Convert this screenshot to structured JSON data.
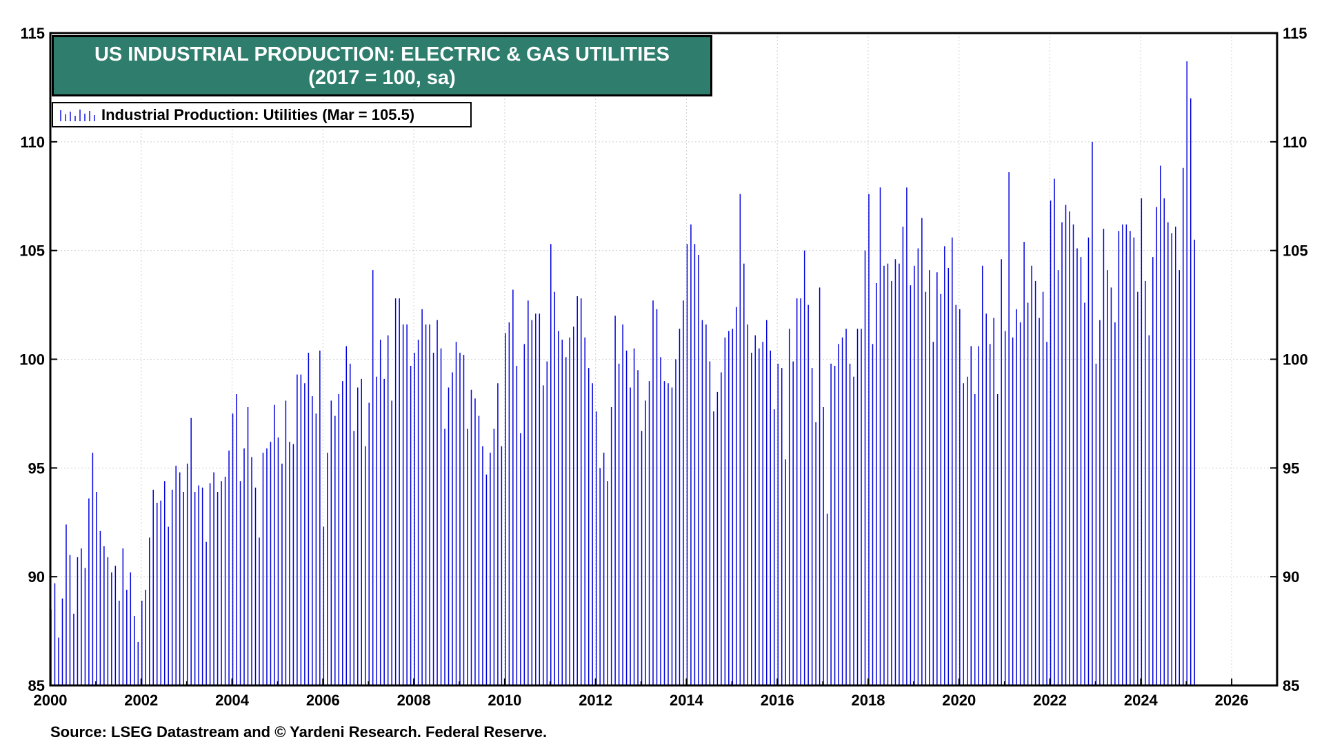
{
  "chart_data": {
    "type": "bar",
    "title": "US INDUSTRIAL PRODUCTION: ELECTRIC & GAS UTILITIES",
    "subtitle": "(2017 = 100, sa)",
    "legend": [
      {
        "label": "Industrial Production: Utilities (Mar = 105.5)",
        "color": "#0000dd"
      }
    ],
    "legend_placement": "top-left",
    "series": [
      {
        "name": "Industrial Production: Utilities (Mar = 105.5)",
        "color": "#0000dd",
        "start": "2000-01",
        "frequency": "monthly",
        "values": [
          88.5,
          89.7,
          87.2,
          89.0,
          92.4,
          91.0,
          88.3,
          90.9,
          91.3,
          90.4,
          93.6,
          95.7,
          93.9,
          92.1,
          91.4,
          90.9,
          90.2,
          90.5,
          88.9,
          91.3,
          89.4,
          90.2,
          88.2,
          87.0,
          88.9,
          89.4,
          91.8,
          94.0,
          93.4,
          93.5,
          94.4,
          92.3,
          94.0,
          95.1,
          94.8,
          93.9,
          95.2,
          97.3,
          93.9,
          94.2,
          94.1,
          91.6,
          94.3,
          94.8,
          93.9,
          94.4,
          94.6,
          95.8,
          97.5,
          98.4,
          94.4,
          95.9,
          97.8,
          95.5,
          94.1,
          91.8,
          95.7,
          95.9,
          96.2,
          97.9,
          96.4,
          95.2,
          98.1,
          96.2,
          96.1,
          99.3,
          99.3,
          98.9,
          100.3,
          98.3,
          97.5,
          100.4,
          92.3,
          95.7,
          98.1,
          97.4,
          98.4,
          99.0,
          100.6,
          99.8,
          96.7,
          98.7,
          99.1,
          96.0,
          98.0,
          104.1,
          99.2,
          100.9,
          99.1,
          101.1,
          98.1,
          102.8,
          102.8,
          101.6,
          101.6,
          99.7,
          100.3,
          100.9,
          102.3,
          101.6,
          101.6,
          100.3,
          101.8,
          100.5,
          96.8,
          98.7,
          99.4,
          100.8,
          100.3,
          100.2,
          96.8,
          98.6,
          98.2,
          97.4,
          96.0,
          94.7,
          95.7,
          96.8,
          98.9,
          96.0,
          101.2,
          101.7,
          103.2,
          99.7,
          96.6,
          100.7,
          102.7,
          101.8,
          102.1,
          102.1,
          98.8,
          99.9,
          105.3,
          103.1,
          101.3,
          100.9,
          100.1,
          101.0,
          101.5,
          102.9,
          102.8,
          101.0,
          99.6,
          98.9,
          97.6,
          95.0,
          95.7,
          94.4,
          97.8,
          102.0,
          99.8,
          101.6,
          100.4,
          98.7,
          100.5,
          99.5,
          96.7,
          98.1,
          99.0,
          102.7,
          102.3,
          100.1,
          99.0,
          98.9,
          98.7,
          100.0,
          101.4,
          102.7,
          105.3,
          106.2,
          105.3,
          104.8,
          101.8,
          101.6,
          99.9,
          97.6,
          98.5,
          99.4,
          101.0,
          101.3,
          101.4,
          102.4,
          107.6,
          104.4,
          101.6,
          100.3,
          101.1,
          100.5,
          100.8,
          101.8,
          100.4,
          97.7,
          99.8,
          99.6,
          95.4,
          101.4,
          99.9,
          102.8,
          102.8,
          105.0,
          102.5,
          99.6,
          97.1,
          103.3,
          97.8,
          92.9,
          99.8,
          99.7,
          100.7,
          101.0,
          101.4,
          99.8,
          99.2,
          101.4,
          101.4,
          105.0,
          107.6,
          100.7,
          103.5,
          107.9,
          104.3,
          104.4,
          103.6,
          104.6,
          104.4,
          106.1,
          107.9,
          103.4,
          104.3,
          105.1,
          106.5,
          103.1,
          104.1,
          100.8,
          104.0,
          103.0,
          105.2,
          104.2,
          105.6,
          102.5,
          102.3,
          98.9,
          99.2,
          100.6,
          98.4,
          100.6,
          104.3,
          102.1,
          100.7,
          101.9,
          98.4,
          104.6,
          101.3,
          108.6,
          101.0,
          102.3,
          101.7,
          105.4,
          102.6,
          104.3,
          103.6,
          101.9,
          103.1,
          100.8,
          107.3,
          108.3,
          104.1,
          106.3,
          107.1,
          106.8,
          106.2,
          105.1,
          104.7,
          102.6,
          105.6,
          110.0,
          99.8,
          101.8,
          106.0,
          104.1,
          103.3,
          101.7,
          105.9,
          106.2,
          106.2,
          105.9,
          105.6,
          103.1,
          107.4,
          103.6,
          101.1,
          104.7,
          107.0,
          108.9,
          107.4,
          106.3,
          105.8,
          106.1,
          104.1,
          108.8,
          113.7,
          112.0,
          105.5
        ]
      }
    ],
    "x_axis": {
      "type": "date",
      "range": [
        "2000-01",
        "2026-12"
      ],
      "tick_labels": [
        "2000",
        "2002",
        "2004",
        "2006",
        "2008",
        "2010",
        "2012",
        "2014",
        "2016",
        "2018",
        "2020",
        "2022",
        "2024",
        "2026"
      ]
    },
    "y_axis": {
      "range": [
        85,
        115
      ],
      "tick_labels": [
        "85",
        "90",
        "95",
        "100",
        "105",
        "110",
        "115"
      ],
      "tick_values": [
        85,
        90,
        95,
        100,
        105,
        110,
        115
      ],
      "both_sides": true
    },
    "grid": true
  },
  "source": "Source: LSEG Datastream and © Yardeni Research. Federal Reserve."
}
